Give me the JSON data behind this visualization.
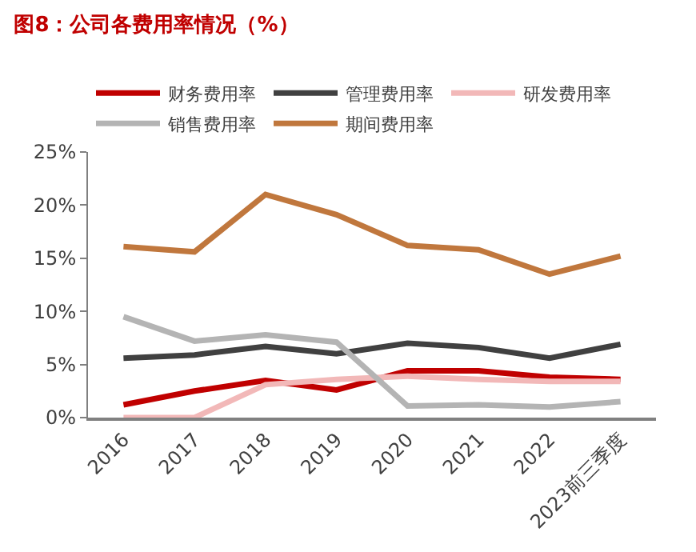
{
  "chart_data": {
    "type": "line",
    "title": "图8：公司各费用率情况（%）",
    "categories": [
      "2016",
      "2017",
      "2018",
      "2019",
      "2020",
      "2021",
      "2022",
      "2023前三季度"
    ],
    "series": [
      {
        "name": "财务费用率",
        "color": "#c00000",
        "values": [
          1.2,
          2.5,
          3.5,
          2.6,
          4.4,
          4.4,
          3.8,
          3.6
        ]
      },
      {
        "name": "管理费用率",
        "color": "#404040",
        "values": [
          5.6,
          5.9,
          6.7,
          6.0,
          7.0,
          6.6,
          5.6,
          6.9
        ]
      },
      {
        "name": "研发费用率",
        "color": "#f2b8b8",
        "values": [
          0,
          0,
          3.1,
          3.6,
          3.9,
          3.6,
          3.4,
          3.4
        ]
      },
      {
        "name": "销售费用率",
        "color": "#b4b4b4",
        "values": [
          9.5,
          7.2,
          7.8,
          7.1,
          1.1,
          1.2,
          1.0,
          1.5
        ]
      },
      {
        "name": "期间费用率",
        "color": "#c0773d",
        "values": [
          16.1,
          15.6,
          21.0,
          19.1,
          16.2,
          15.8,
          13.5,
          15.2
        ]
      }
    ],
    "ylim": [
      0,
      25
    ],
    "yticks": [
      {
        "value": 0,
        "label": "0%"
      },
      {
        "value": 5,
        "label": "5%"
      },
      {
        "value": 10,
        "label": "10%"
      },
      {
        "value": 15,
        "label": "15%"
      },
      {
        "value": 20,
        "label": "20%"
      },
      {
        "value": 25,
        "label": "25%"
      }
    ],
    "legend": "top",
    "marker": "none",
    "line_style": "solid"
  }
}
